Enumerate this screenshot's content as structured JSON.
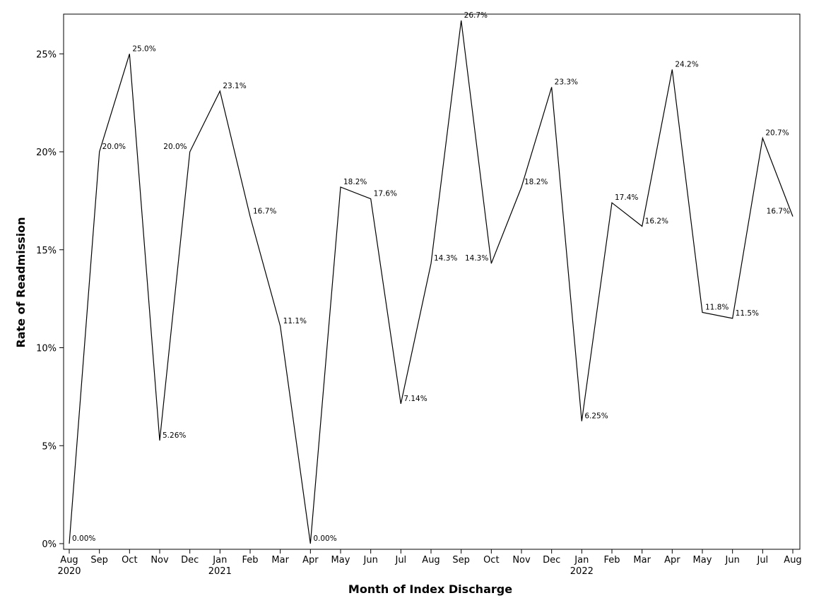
{
  "chart_data": {
    "type": "line",
    "title": "",
    "xlabel": "Month of Index Discharge",
    "ylabel": "Rate of Readmission",
    "ylim": [
      0,
      27
    ],
    "yticks": [
      "0%",
      "5%",
      "10%",
      "15%",
      "20%",
      "25%"
    ],
    "ytick_values": [
      0,
      5,
      10,
      15,
      20,
      25
    ],
    "grid": false,
    "legend": "none",
    "line_color": "#000000",
    "x": [
      "Aug 2020",
      "Sep 2020",
      "Oct 2020",
      "Nov 2020",
      "Dec 2020",
      "Jan 2021",
      "Feb 2021",
      "Mar 2021",
      "Apr 2021",
      "May 2021",
      "Jun 2021",
      "Jul 2021",
      "Aug 2021",
      "Sep 2021",
      "Oct 2021",
      "Nov 2021",
      "Dec 2021",
      "Jan 2022",
      "Feb 2022",
      "Mar 2022",
      "Apr 2022",
      "May 2022",
      "Jun 2022",
      "Jul 2022",
      "Aug 2022"
    ],
    "xtick_month": [
      "Aug",
      "Sep",
      "Oct",
      "Nov",
      "Dec",
      "Jan",
      "Feb",
      "Mar",
      "Apr",
      "May",
      "Jun",
      "Jul",
      "Aug",
      "Sep",
      "Oct",
      "Nov",
      "Dec",
      "Jan",
      "Feb",
      "Mar",
      "Apr",
      "May",
      "Jun",
      "Jul",
      "Aug"
    ],
    "xtick_year": [
      "2020",
      "",
      "",
      "",
      "",
      "2021",
      "",
      "",
      "",
      "",
      "",
      "",
      "",
      "",
      "",
      "",
      "",
      "2022",
      "",
      "",
      "",
      "",
      "",
      "",
      ""
    ],
    "values": [
      0.0,
      20.0,
      25.0,
      5.26,
      20.0,
      23.1,
      16.7,
      11.1,
      0.0,
      18.2,
      17.6,
      7.14,
      14.3,
      26.7,
      14.3,
      18.2,
      23.3,
      6.25,
      17.4,
      16.2,
      24.2,
      11.8,
      11.5,
      20.7,
      16.7
    ],
    "data_labels": [
      "0.00%",
      "20.0%",
      "25.0%",
      "5.26%",
      "20.0%",
      "23.1%",
      "16.7%",
      "11.1%",
      "0.00%",
      "18.2%",
      "17.6%",
      "7.14%",
      "14.3%",
      "26.7%",
      "14.3%",
      "18.2%",
      "23.3%",
      "6.25%",
      "17.4%",
      "16.2%",
      "24.2%",
      "11.8%",
      "11.5%",
      "20.7%",
      "16.7%"
    ]
  }
}
